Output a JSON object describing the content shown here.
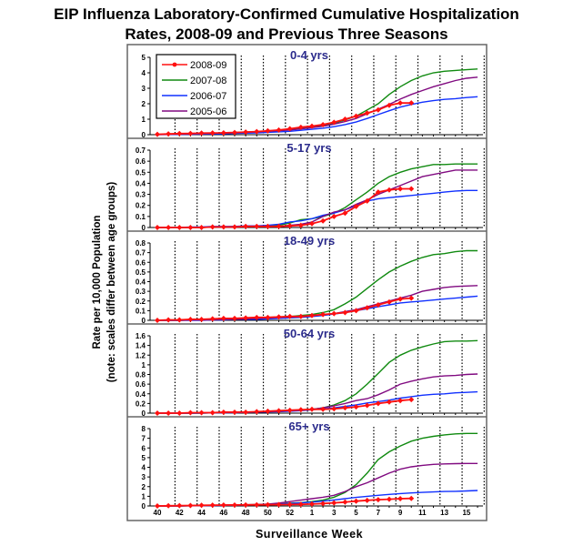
{
  "chart_data": {
    "type": "line",
    "title": [
      "EIP Influenza Laboratory-Confirmed Cumulative Hospitalization",
      "Rates, 2008-09 and Previous Three Seasons"
    ],
    "xlabel": "Surveillance Week",
    "ylabel": [
      "Rate per 10,000 Population",
      "(note: scales differ between age groups)"
    ],
    "x": [
      40,
      41,
      42,
      43,
      44,
      45,
      46,
      47,
      48,
      49,
      50,
      51,
      52,
      1,
      2,
      3,
      4,
      5,
      6,
      7,
      8,
      9,
      10,
      11,
      12,
      13,
      14,
      15,
      16,
      17
    ],
    "x_tick_labels": [
      "40",
      "42",
      "44",
      "46",
      "48",
      "50",
      "52",
      "1",
      "3",
      "5",
      "7",
      "9",
      "11",
      "13",
      "15"
    ],
    "legend": {
      "placement": "top-left",
      "entries": [
        "2008-09",
        "2007-08",
        "2006-07",
        "2005-06"
      ]
    },
    "colors": {
      "2008-09": "#ff1010",
      "2007-08": "#108a10",
      "2006-07": "#1030ff",
      "2005-06": "#800a80"
    },
    "grid": "vertical dotted",
    "panels": [
      {
        "title": "0-4 yrs",
        "ylim": [
          0,
          5
        ],
        "yticks": [
          "0",
          "1",
          "2",
          "3",
          "4",
          "5"
        ],
        "series": [
          {
            "name": "2008-09",
            "values": [
              0.02,
              0.05,
              0.07,
              0.08,
              0.1,
              0.11,
              0.12,
              0.14,
              0.17,
              0.2,
              0.25,
              0.3,
              0.38,
              0.48,
              0.55,
              0.65,
              0.8,
              1.0,
              1.2,
              1.4,
              1.6,
              1.9,
              2.05,
              2.05
            ]
          },
          {
            "name": "2007-08",
            "values": [
              0.02,
              0.03,
              0.04,
              0.06,
              0.08,
              0.1,
              0.12,
              0.14,
              0.17,
              0.2,
              0.23,
              0.27,
              0.32,
              0.4,
              0.5,
              0.6,
              0.75,
              0.95,
              1.2,
              1.6,
              2.0,
              2.6,
              3.1,
              3.5,
              3.8,
              4.0,
              4.1,
              4.15,
              4.2,
              4.25
            ]
          },
          {
            "name": "2006-07",
            "values": [
              0,
              0.01,
              0.02,
              0.03,
              0.04,
              0.05,
              0.06,
              0.08,
              0.1,
              0.12,
              0.15,
              0.18,
              0.22,
              0.28,
              0.35,
              0.42,
              0.52,
              0.65,
              0.82,
              1.05,
              1.3,
              1.55,
              1.78,
              1.95,
              2.1,
              2.2,
              2.28,
              2.33,
              2.4,
              2.45
            ]
          },
          {
            "name": "2005-06",
            "values": [
              0.02,
              0.03,
              0.04,
              0.05,
              0.07,
              0.09,
              0.11,
              0.13,
              0.16,
              0.19,
              0.22,
              0.26,
              0.3,
              0.37,
              0.45,
              0.55,
              0.68,
              0.85,
              1.05,
              1.35,
              1.65,
              1.95,
              2.3,
              2.6,
              2.85,
              3.1,
              3.3,
              3.5,
              3.65,
              3.72
            ]
          }
        ]
      },
      {
        "title": "5-17 yrs",
        "ylim": [
          0,
          0.7
        ],
        "yticks": [
          "0",
          "0.1",
          "0.2",
          "0.3",
          "0.4",
          "0.5",
          "0.6",
          "0.7"
        ],
        "series": [
          {
            "name": "2008-09",
            "values": [
              0,
              0,
              0,
              0,
              0,
              0.005,
              0.005,
              0.005,
              0.01,
              0.01,
              0.01,
              0.01,
              0.015,
              0.02,
              0.035,
              0.06,
              0.1,
              0.13,
              0.19,
              0.24,
              0.32,
              0.34,
              0.35,
              0.35
            ]
          },
          {
            "name": "2007-08",
            "values": [
              0,
              0,
              0,
              0,
              0,
              0.005,
              0.005,
              0.01,
              0.01,
              0.01,
              0.015,
              0.02,
              0.04,
              0.07,
              0.08,
              0.1,
              0.13,
              0.18,
              0.25,
              0.32,
              0.4,
              0.46,
              0.5,
              0.53,
              0.55,
              0.57,
              0.57,
              0.575,
              0.575,
              0.575
            ]
          },
          {
            "name": "2006-07",
            "values": [
              0,
              0,
              0,
              0.005,
              0.005,
              0.01,
              0.01,
              0.01,
              0.015,
              0.015,
              0.02,
              0.03,
              0.05,
              0.06,
              0.08,
              0.11,
              0.13,
              0.16,
              0.2,
              0.24,
              0.26,
              0.27,
              0.28,
              0.29,
              0.3,
              0.31,
              0.32,
              0.33,
              0.335,
              0.335
            ]
          },
          {
            "name": "2005-06",
            "values": [
              0,
              0,
              0,
              0,
              0,
              0.005,
              0.005,
              0.005,
              0.01,
              0.01,
              0.01,
              0.01,
              0.02,
              0.03,
              0.05,
              0.1,
              0.14,
              0.16,
              0.21,
              0.25,
              0.3,
              0.34,
              0.38,
              0.42,
              0.46,
              0.48,
              0.5,
              0.52,
              0.52,
              0.52
            ]
          }
        ]
      },
      {
        "title": "18-49 yrs",
        "ylim": [
          0,
          0.8
        ],
        "yticks": [
          "0",
          "0.1",
          "0.2",
          "0.3",
          "0.4",
          "0.5",
          "0.6",
          "0.7",
          "0.8"
        ],
        "series": [
          {
            "name": "2008-09",
            "values": [
              0,
              0.005,
              0.005,
              0.01,
              0.01,
              0.015,
              0.02,
              0.02,
              0.025,
              0.03,
              0.03,
              0.035,
              0.04,
              0.04,
              0.05,
              0.06,
              0.07,
              0.08,
              0.1,
              0.13,
              0.16,
              0.19,
              0.22,
              0.23
            ]
          },
          {
            "name": "2007-08",
            "values": [
              0,
              0,
              0,
              0.005,
              0.005,
              0.01,
              0.01,
              0.015,
              0.02,
              0.025,
              0.03,
              0.035,
              0.04,
              0.05,
              0.06,
              0.08,
              0.11,
              0.17,
              0.24,
              0.33,
              0.42,
              0.5,
              0.56,
              0.61,
              0.65,
              0.68,
              0.69,
              0.71,
              0.72,
              0.72
            ]
          },
          {
            "name": "2006-07",
            "values": [
              0,
              0,
              0,
              0,
              0,
              0.005,
              0.005,
              0.01,
              0.01,
              0.01,
              0.015,
              0.02,
              0.025,
              0.03,
              0.04,
              0.05,
              0.065,
              0.08,
              0.1,
              0.12,
              0.14,
              0.16,
              0.18,
              0.19,
              0.2,
              0.21,
              0.22,
              0.23,
              0.24,
              0.25
            ]
          },
          {
            "name": "2005-06",
            "values": [
              0,
              0,
              0,
              0.005,
              0.005,
              0.005,
              0.01,
              0.01,
              0.015,
              0.02,
              0.025,
              0.03,
              0.035,
              0.04,
              0.05,
              0.06,
              0.07,
              0.09,
              0.11,
              0.14,
              0.17,
              0.2,
              0.23,
              0.26,
              0.3,
              0.32,
              0.34,
              0.35,
              0.355,
              0.36
            ]
          }
        ]
      },
      {
        "title": "50-64 yrs",
        "ylim": [
          0,
          1.6
        ],
        "yticks": [
          "0",
          "0.2",
          "0.4",
          "0.6",
          "0.8",
          "1",
          "1.2",
          "1.4",
          "1.6"
        ],
        "series": [
          {
            "name": "2008-09",
            "values": [
              0,
              0,
              0,
              0.01,
              0.01,
              0.01,
              0.02,
              0.02,
              0.02,
              0.03,
              0.04,
              0.05,
              0.06,
              0.07,
              0.08,
              0.08,
              0.09,
              0.11,
              0.13,
              0.16,
              0.2,
              0.23,
              0.26,
              0.28
            ]
          },
          {
            "name": "2007-08",
            "values": [
              0,
              0,
              0,
              0,
              0,
              0.005,
              0.01,
              0.01,
              0.02,
              0.02,
              0.03,
              0.04,
              0.05,
              0.06,
              0.08,
              0.11,
              0.17,
              0.26,
              0.4,
              0.6,
              0.82,
              1.05,
              1.2,
              1.3,
              1.37,
              1.43,
              1.48,
              1.49,
              1.49,
              1.5
            ]
          },
          {
            "name": "2006-07",
            "values": [
              0,
              0,
              0,
              0,
              0,
              0.005,
              0.01,
              0.01,
              0.015,
              0.02,
              0.025,
              0.03,
              0.04,
              0.05,
              0.07,
              0.09,
              0.11,
              0.14,
              0.17,
              0.21,
              0.24,
              0.27,
              0.31,
              0.34,
              0.37,
              0.39,
              0.4,
              0.42,
              0.43,
              0.44
            ]
          },
          {
            "name": "2005-06",
            "values": [
              0,
              0,
              0,
              0,
              0.005,
              0.01,
              0.01,
              0.015,
              0.02,
              0.025,
              0.03,
              0.04,
              0.05,
              0.06,
              0.08,
              0.11,
              0.15,
              0.2,
              0.26,
              0.3,
              0.38,
              0.48,
              0.6,
              0.66,
              0.71,
              0.75,
              0.77,
              0.78,
              0.8,
              0.81
            ]
          }
        ]
      },
      {
        "title": "65+ yrs",
        "ylim": [
          0,
          8
        ],
        "yticks": [
          "0",
          "1",
          "2",
          "3",
          "4",
          "5",
          "6",
          "7",
          "8"
        ],
        "series": [
          {
            "name": "2008-09",
            "values": [
              0,
              0.02,
              0.03,
              0.05,
              0.07,
              0.08,
              0.09,
              0.1,
              0.11,
              0.12,
              0.13,
              0.14,
              0.15,
              0.17,
              0.2,
              0.25,
              0.32,
              0.4,
              0.5,
              0.58,
              0.65,
              0.7,
              0.75,
              0.78
            ]
          },
          {
            "name": "2007-08",
            "values": [
              0,
              0,
              0,
              0.02,
              0.04,
              0.06,
              0.08,
              0.1,
              0.12,
              0.15,
              0.18,
              0.22,
              0.28,
              0.35,
              0.45,
              0.6,
              0.9,
              1.4,
              2.2,
              3.4,
              4.8,
              5.6,
              6.2,
              6.7,
              7.0,
              7.2,
              7.35,
              7.45,
              7.5,
              7.5
            ]
          },
          {
            "name": "2006-07",
            "values": [
              0,
              0,
              0,
              0.02,
              0.03,
              0.05,
              0.06,
              0.08,
              0.1,
              0.12,
              0.15,
              0.2,
              0.25,
              0.32,
              0.4,
              0.5,
              0.62,
              0.75,
              0.88,
              1.0,
              1.1,
              1.2,
              1.28,
              1.35,
              1.4,
              1.45,
              1.5,
              1.52,
              1.55,
              1.6
            ]
          },
          {
            "name": "2005-06",
            "values": [
              0,
              0,
              0,
              0.02,
              0.04,
              0.06,
              0.08,
              0.1,
              0.12,
              0.15,
              0.2,
              0.3,
              0.45,
              0.6,
              0.75,
              0.9,
              1.1,
              1.5,
              2.0,
              2.4,
              2.9,
              3.4,
              3.8,
              4.05,
              4.2,
              4.3,
              4.35,
              4.38,
              4.4,
              4.4
            ]
          }
        ]
      }
    ]
  }
}
